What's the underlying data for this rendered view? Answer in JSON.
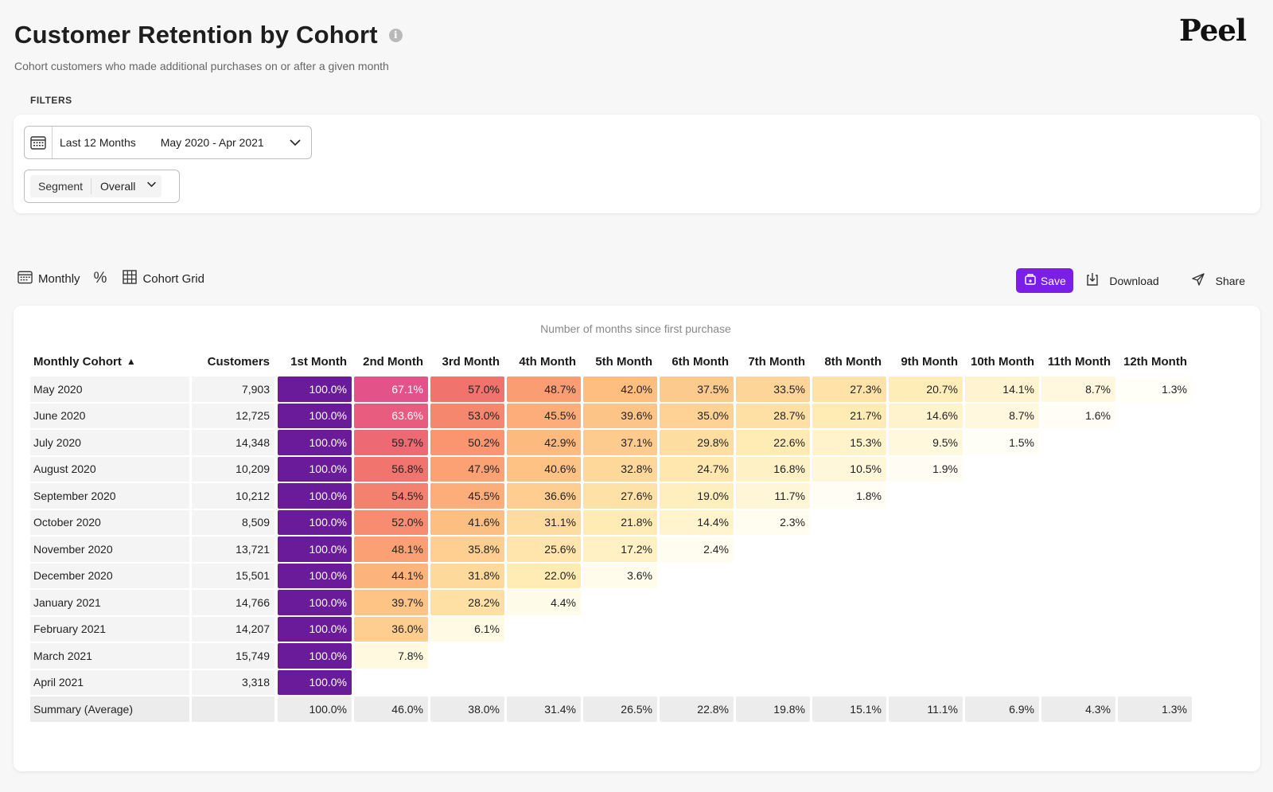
{
  "header": {
    "title": "Customer Retention by Cohort",
    "info_icon": "i",
    "subtitle": "Cohort customers who made additional purchases on or after a given month",
    "logo": "Peel"
  },
  "filters": {
    "label": "FILTERS",
    "date_range_name": "Last 12 Months",
    "date_range_value": "May 2020 - Apr 2021",
    "segment_label": "Segment",
    "segment_value": "Overall"
  },
  "toolbar": {
    "period": "Monthly",
    "percent_symbol": "%",
    "view": "Cohort Grid"
  },
  "actions": {
    "save": "Save",
    "download": "Download",
    "share": "Share"
  },
  "table": {
    "caption": "Number of months since first purchase",
    "headers": [
      "Monthly Cohort",
      "Customers",
      "1st Month",
      "2nd Month",
      "3rd Month",
      "4th Month",
      "5th Month",
      "6th Month",
      "7th Month",
      "8th Month",
      "9th Month",
      "10th Month",
      "11th Month",
      "12th Month"
    ],
    "sort_indicator": "▲",
    "rows": [
      {
        "cohort": "May 2020",
        "customers": "7,903",
        "values": [
          "100.0%",
          "67.1%",
          "57.0%",
          "48.7%",
          "42.0%",
          "37.5%",
          "33.5%",
          "27.3%",
          "20.7%",
          "14.1%",
          "8.7%",
          "1.3%"
        ]
      },
      {
        "cohort": "June 2020",
        "customers": "12,725",
        "values": [
          "100.0%",
          "63.6%",
          "53.0%",
          "45.5%",
          "39.6%",
          "35.0%",
          "28.7%",
          "21.7%",
          "14.6%",
          "8.7%",
          "1.6%"
        ]
      },
      {
        "cohort": "July 2020",
        "customers": "14,348",
        "values": [
          "100.0%",
          "59.7%",
          "50.2%",
          "42.9%",
          "37.1%",
          "29.8%",
          "22.6%",
          "15.3%",
          "9.5%",
          "1.5%"
        ]
      },
      {
        "cohort": "August 2020",
        "customers": "10,209",
        "values": [
          "100.0%",
          "56.8%",
          "47.9%",
          "40.6%",
          "32.8%",
          "24.7%",
          "16.8%",
          "10.5%",
          "1.9%"
        ]
      },
      {
        "cohort": "September 2020",
        "customers": "10,212",
        "values": [
          "100.0%",
          "54.5%",
          "45.5%",
          "36.6%",
          "27.6%",
          "19.0%",
          "11.7%",
          "1.8%"
        ]
      },
      {
        "cohort": "October 2020",
        "customers": "8,509",
        "values": [
          "100.0%",
          "52.0%",
          "41.6%",
          "31.1%",
          "21.8%",
          "14.4%",
          "2.3%"
        ]
      },
      {
        "cohort": "November 2020",
        "customers": "13,721",
        "values": [
          "100.0%",
          "48.1%",
          "35.8%",
          "25.6%",
          "17.2%",
          "2.4%"
        ]
      },
      {
        "cohort": "December 2020",
        "customers": "15,501",
        "values": [
          "100.0%",
          "44.1%",
          "31.8%",
          "22.0%",
          "3.6%"
        ]
      },
      {
        "cohort": "January 2021",
        "customers": "14,766",
        "values": [
          "100.0%",
          "39.7%",
          "28.2%",
          "4.4%"
        ]
      },
      {
        "cohort": "February 2021",
        "customers": "14,207",
        "values": [
          "100.0%",
          "36.0%",
          "6.1%"
        ]
      },
      {
        "cohort": "March 2021",
        "customers": "15,749",
        "values": [
          "100.0%",
          "7.8%"
        ]
      },
      {
        "cohort": "April 2021",
        "customers": "3,318",
        "values": [
          "100.0%"
        ]
      }
    ],
    "summary": {
      "cohort": "Summary (Average)",
      "customers": "",
      "values": [
        "100.0%",
        "46.0%",
        "38.0%",
        "31.4%",
        "26.5%",
        "22.8%",
        "19.8%",
        "15.1%",
        "11.1%",
        "6.9%",
        "4.3%",
        "1.3%"
      ]
    }
  },
  "colors": {
    "accent": "#7a1ee8",
    "heat_full": "#6a1b9a"
  }
}
